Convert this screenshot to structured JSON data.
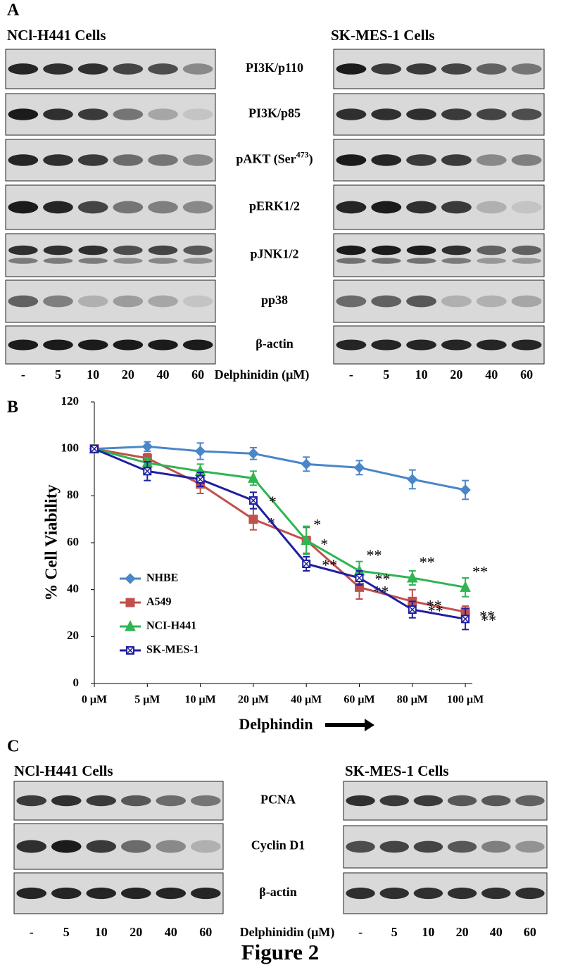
{
  "panel_a": {
    "label": "A",
    "left_title": "NCl-H441 Cells",
    "right_title": "SK-MES-1 Cells",
    "proteins": [
      {
        "text": "PI3K/p110"
      },
      {
        "text": "PI3K/p85"
      },
      {
        "text": "pAKT (Ser",
        "sup": "473",
        "tail": ")"
      },
      {
        "text": "pERK1/2"
      },
      {
        "text": "pJNK1/2"
      },
      {
        "text": "pp38"
      },
      {
        "text": "β-actin"
      }
    ],
    "left_lanes": [
      "-",
      "5",
      "10",
      "20",
      "40",
      "60"
    ],
    "treatment": "Delphinidin (μM)",
    "right_lanes": [
      "-",
      "5",
      "10",
      "20",
      "40",
      "60"
    ]
  },
  "chart_data": {
    "type": "line",
    "panel_label": "B",
    "categories": [
      "0 μM",
      "5 μM",
      "10 μM",
      "20 μM",
      "40 μM",
      "60 μM",
      "80 μM",
      "100 μM"
    ],
    "xlabel": "Delphindin",
    "ylabel": "% Cell Viability",
    "ylim": [
      0,
      120
    ],
    "yticks": [
      0,
      20,
      40,
      60,
      80,
      100,
      120
    ],
    "legend": "left",
    "series": [
      {
        "name": "NHBE",
        "color": "#4a86c8",
        "marker": "diamond",
        "values": [
          100,
          101,
          99,
          98,
          93.5,
          92,
          87,
          82.5
        ],
        "errors": [
          0,
          2,
          3.5,
          2.5,
          3,
          3,
          4,
          4
        ],
        "significance": [
          null,
          null,
          null,
          null,
          null,
          null,
          null,
          null
        ]
      },
      {
        "name": "A549",
        "color": "#c0504d",
        "marker": "square",
        "values": [
          100,
          96,
          85,
          70,
          61,
          41,
          35,
          30.5
        ],
        "errors": [
          0,
          2,
          4,
          4.5,
          5.5,
          5,
          5,
          2.5
        ],
        "significance": [
          null,
          null,
          null,
          "*",
          "*",
          "**",
          "**",
          "**"
        ]
      },
      {
        "name": "NCI-H441",
        "color": "#2fb552",
        "marker": "triangle",
        "values": [
          100,
          94,
          90.5,
          87.5,
          61,
          48,
          45,
          41
        ],
        "errors": [
          0,
          2,
          3,
          3,
          6,
          4,
          3,
          4
        ],
        "significance": [
          null,
          null,
          null,
          null,
          "*",
          "**",
          "**",
          "**"
        ]
      },
      {
        "name": "SK-MES-1",
        "color": "#1f1fa0",
        "marker": "xsquare",
        "values": [
          100,
          90.5,
          87,
          78,
          51,
          45,
          31.5,
          27.5
        ],
        "errors": [
          0,
          4,
          3,
          3.5,
          3,
          3,
          3.5,
          4.5
        ],
        "significance": [
          null,
          null,
          null,
          "*",
          "**",
          "**",
          "**",
          "**"
        ]
      }
    ]
  },
  "panel_c": {
    "label": "C",
    "left_title": "NCl-H441 Cells",
    "right_title": "SK-MES-1 Cells",
    "proteins": [
      {
        "text": "PCNA"
      },
      {
        "text": "Cyclin D1"
      },
      {
        "text": "β-actin"
      }
    ],
    "left_lanes": [
      "-",
      "5",
      "10",
      "20",
      "40",
      "60"
    ],
    "treatment": "Delphinidin (μM)",
    "right_lanes": [
      "-",
      "5",
      "10",
      "20",
      "40",
      "60"
    ]
  },
  "caption": "Figure 2"
}
